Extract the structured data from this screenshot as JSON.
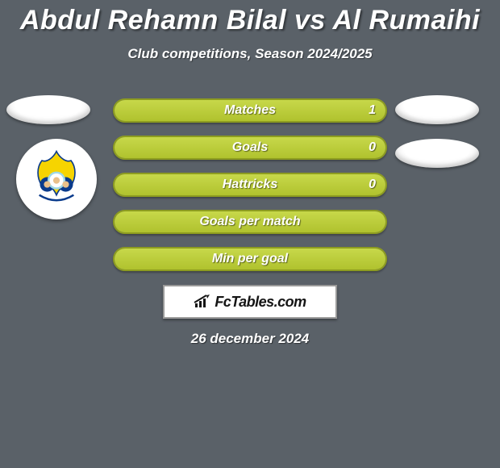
{
  "colors": {
    "page_bg": "#5a6168",
    "text": "#ffffff",
    "stat_border": "#8d9c20",
    "stat_fill_top": "#c7d84a",
    "stat_fill_bottom": "#b0c22e",
    "brand_bg": "#ffffff",
    "brand_border": "#999999",
    "brand_text": "#151515"
  },
  "title": "Abdul Rehamn Bilal vs Al Rumaihi",
  "subtitle": "Club competitions, Season 2024/2025",
  "brand": "FcTables.com",
  "date": "26 december 2024",
  "left_badge": {
    "show_club": true
  },
  "right_badge": {
    "show_club": false
  },
  "stats": [
    {
      "label": "Matches",
      "value": "1",
      "left_pct": 100,
      "right_pct": 0
    },
    {
      "label": "Goals",
      "value": "0",
      "left_pct": 100,
      "right_pct": 0
    },
    {
      "label": "Hattricks",
      "value": "0",
      "left_pct": 100,
      "right_pct": 0
    },
    {
      "label": "Goals per match",
      "value": "",
      "left_pct": 100,
      "right_pct": 0
    },
    {
      "label": "Min per goal",
      "value": "",
      "left_pct": 100,
      "right_pct": 0
    }
  ]
}
